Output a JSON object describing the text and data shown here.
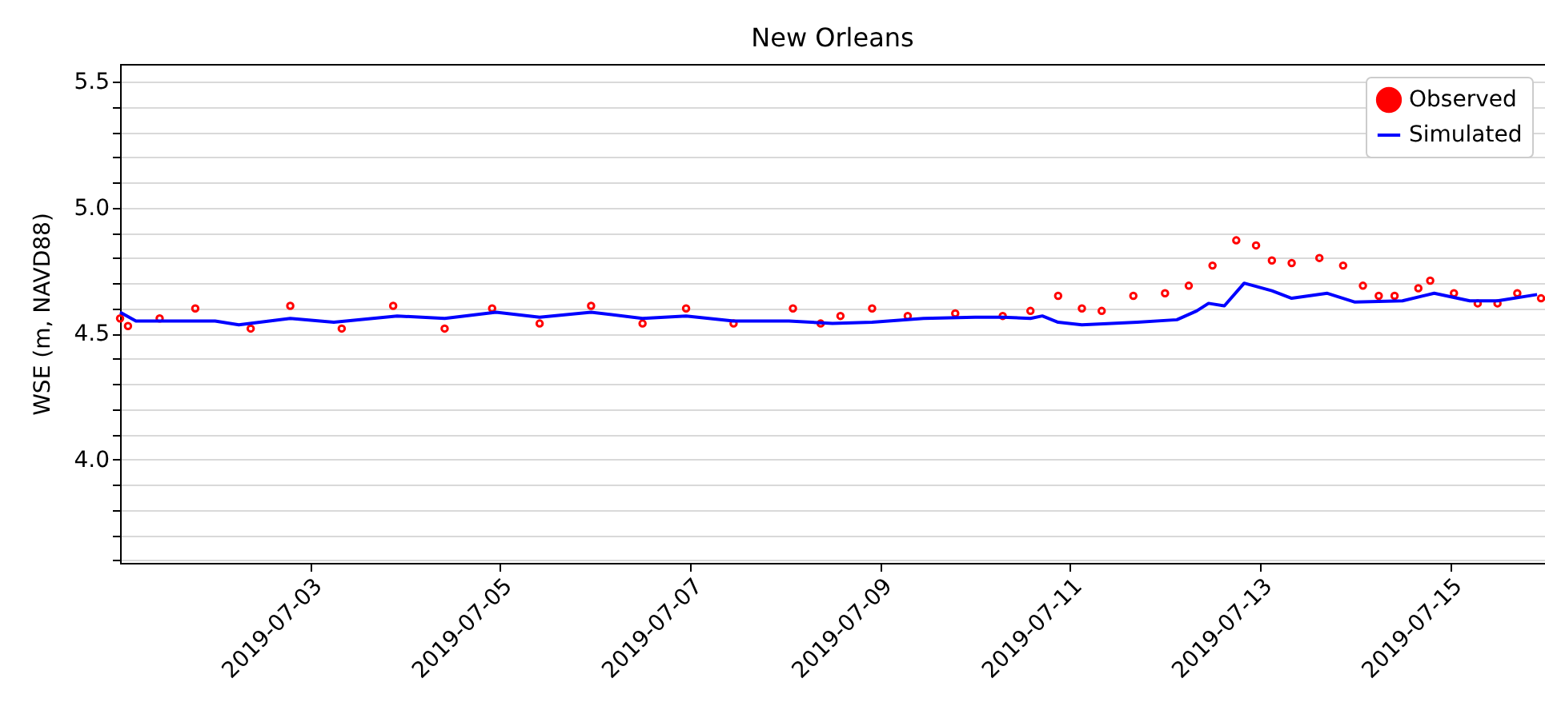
{
  "chart_data": {
    "type": "line",
    "title": "New Orleans",
    "ylabel": "WSE (m, NAVD88)",
    "xlim": [
      "2019-07-01T00:00",
      "2019-07-16T00:00"
    ],
    "xticks": [
      "2019-07-03",
      "2019-07-05",
      "2019-07-07",
      "2019-07-09",
      "2019-07-11",
      "2019-07-13",
      "2019-07-15"
    ],
    "ylim": [
      3.59,
      5.57
    ],
    "yticks": [
      {
        "value": 3.6,
        "label": null
      },
      {
        "value": 3.7,
        "label": null
      },
      {
        "value": 3.8,
        "label": null
      },
      {
        "value": 3.9,
        "label": null
      },
      {
        "value": 4.0,
        "label": "4.0"
      },
      {
        "value": 4.1,
        "label": null
      },
      {
        "value": 4.2,
        "label": null
      },
      {
        "value": 4.3,
        "label": null
      },
      {
        "value": 4.4,
        "label": null
      },
      {
        "value": 4.5,
        "label": "4.5"
      },
      {
        "value": 4.6,
        "label": null
      },
      {
        "value": 4.7,
        "label": null
      },
      {
        "value": 4.8,
        "label": null
      },
      {
        "value": 4.9,
        "label": null
      },
      {
        "value": 5.0,
        "label": "5.0"
      },
      {
        "value": 5.1,
        "label": null
      },
      {
        "value": 5.2,
        "label": null
      },
      {
        "value": 5.3,
        "label": null
      },
      {
        "value": 5.4,
        "label": null
      },
      {
        "value": 5.5,
        "label": "5.5"
      }
    ],
    "grid": "y",
    "legend": "top right",
    "series": [
      {
        "name": "Observed",
        "type": "scatter",
        "marker": "circle",
        "color": "#ff0000",
        "x": [
          "2019-07-01T00:00",
          "2019-07-01T02:00",
          "2019-07-01T10:00",
          "2019-07-01T19:00",
          "2019-07-02T09:00",
          "2019-07-02T19:00",
          "2019-07-03T08:00",
          "2019-07-03T21:00",
          "2019-07-04T10:00",
          "2019-07-04T22:00",
          "2019-07-05T10:00",
          "2019-07-05T23:00",
          "2019-07-06T12:00",
          "2019-07-06T23:00",
          "2019-07-07T11:00",
          "2019-07-08T02:00",
          "2019-07-08T09:00",
          "2019-07-08T14:00",
          "2019-07-08T22:00",
          "2019-07-09T07:00",
          "2019-07-09T19:00",
          "2019-07-10T07:00",
          "2019-07-10T14:00",
          "2019-07-10T21:00",
          "2019-07-11T03:00",
          "2019-07-11T08:00",
          "2019-07-11T16:00",
          "2019-07-12T00:00",
          "2019-07-12T06:00",
          "2019-07-12T12:00",
          "2019-07-12T18:00",
          "2019-07-12T23:00",
          "2019-07-13T03:00",
          "2019-07-13T08:00",
          "2019-07-13T15:00",
          "2019-07-13T21:00",
          "2019-07-14T02:00",
          "2019-07-14T06:00",
          "2019-07-14T10:00",
          "2019-07-14T16:00",
          "2019-07-14T19:00",
          "2019-07-15T01:00",
          "2019-07-15T07:00",
          "2019-07-15T12:00",
          "2019-07-15T17:00",
          "2019-07-15T23:00"
        ],
        "values": [
          4.56,
          4.53,
          4.56,
          4.6,
          4.52,
          4.61,
          4.52,
          4.61,
          4.52,
          4.6,
          4.54,
          4.61,
          4.54,
          4.6,
          4.54,
          4.6,
          4.54,
          4.57,
          4.6,
          4.57,
          4.58,
          4.57,
          4.59,
          4.65,
          4.6,
          4.59,
          4.65,
          4.66,
          4.69,
          4.77,
          4.87,
          4.85,
          4.79,
          4.78,
          4.8,
          4.77,
          4.69,
          4.65,
          4.65,
          4.68,
          4.71,
          4.66,
          4.62,
          4.62,
          4.66,
          4.64
        ]
      },
      {
        "name": "Simulated",
        "marker": "none",
        "color": "#0000ff",
        "x": [
          "2019-07-01T00:00",
          "2019-07-01T04:00",
          "2019-07-02T00:00",
          "2019-07-02T06:00",
          "2019-07-02T19:00",
          "2019-07-03T06:00",
          "2019-07-03T22:00",
          "2019-07-04T10:00",
          "2019-07-04T23:00",
          "2019-07-05T10:00",
          "2019-07-05T23:00",
          "2019-07-06T12:00",
          "2019-07-06T23:00",
          "2019-07-07T11:00",
          "2019-07-08T01:00",
          "2019-07-08T12:00",
          "2019-07-08T22:00",
          "2019-07-09T11:00",
          "2019-07-10T00:00",
          "2019-07-10T07:00",
          "2019-07-10T14:00",
          "2019-07-10T17:00",
          "2019-07-10T21:00",
          "2019-07-11T03:00",
          "2019-07-11T17:00",
          "2019-07-12T03:00",
          "2019-07-12T08:00",
          "2019-07-12T11:00",
          "2019-07-12T15:00",
          "2019-07-12T20:00",
          "2019-07-13T03:00",
          "2019-07-13T08:00",
          "2019-07-13T17:00",
          "2019-07-14T00:00",
          "2019-07-14T12:00",
          "2019-07-14T20:00",
          "2019-07-15T05:00",
          "2019-07-15T12:00",
          "2019-07-15T22:00"
        ],
        "values": [
          4.585,
          4.55,
          4.55,
          4.535,
          4.56,
          4.545,
          4.57,
          4.56,
          4.585,
          4.565,
          4.585,
          4.56,
          4.57,
          4.55,
          4.55,
          4.54,
          4.545,
          4.56,
          4.565,
          4.565,
          4.56,
          4.57,
          4.545,
          4.535,
          4.545,
          4.555,
          4.59,
          4.62,
          4.61,
          4.7,
          4.67,
          4.64,
          4.66,
          4.625,
          4.63,
          4.66,
          4.63,
          4.63,
          4.655
        ]
      }
    ]
  }
}
